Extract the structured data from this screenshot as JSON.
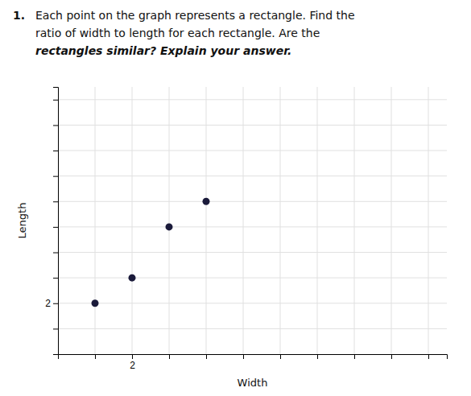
{
  "chart_data": {
    "type": "scatter",
    "annotations": [
      "1."
    ],
    "title": [
      "Each point on the graph represents a rectangle. Find the",
      "ratio of width to length for each rectangle. Are the",
      "rectangles similar? Explain your answer."
    ],
    "x_label": "Width",
    "y_label": "Length",
    "x": [
      1,
      2,
      3,
      4
    ],
    "values": [
      2,
      3,
      5,
      6
    ],
    "color": "#1a1a3a",
    "xlim": [
      0,
      10.5
    ],
    "ylim": [
      0,
      10.5
    ],
    "xticks": [
      {
        "value": 1,
        "label": null
      },
      2,
      {
        "value": 3,
        "label": null
      },
      {
        "value": 4,
        "label": null
      },
      {
        "value": 5,
        "label": null
      },
      {
        "value": 6,
        "label": null
      },
      {
        "value": 7,
        "label": null
      },
      {
        "value": 8,
        "label": null
      },
      {
        "value": 9,
        "label": null
      },
      {
        "value": 10,
        "label": null
      }
    ],
    "yticks": [
      {
        "value": 1,
        "label": null
      },
      2,
      {
        "value": 3,
        "label": null
      },
      {
        "value": 4,
        "label": null
      },
      {
        "value": 5,
        "label": null
      },
      {
        "value": 6,
        "label": null
      },
      {
        "value": 7,
        "label": null
      },
      {
        "value": 8,
        "label": null
      },
      {
        "value": 9,
        "label": null
      },
      {
        "value": 10,
        "label": null
      }
    ],
    "grid": true
  }
}
